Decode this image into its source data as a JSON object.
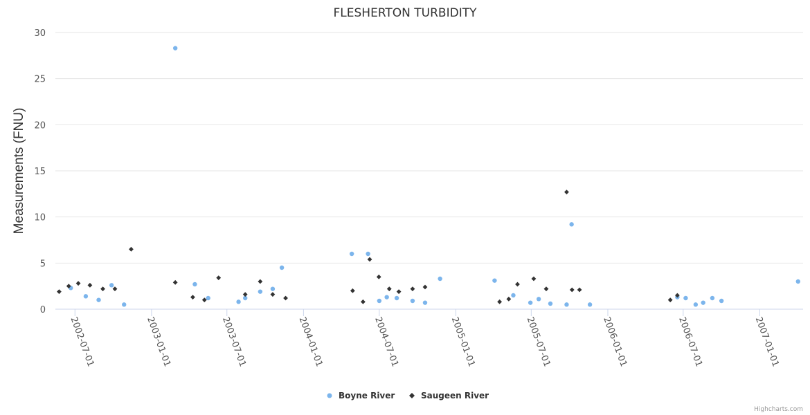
{
  "chart_data": {
    "type": "scatter",
    "title": "FLESHERTON TURBIDITY",
    "xlabel": "",
    "ylabel": "Measurements (FNU)",
    "xlim": [
      "2002-05-15",
      "2007-04-15"
    ],
    "ylim": [
      0,
      30
    ],
    "yticks": [
      0,
      5,
      10,
      15,
      20,
      25,
      30
    ],
    "xticks": [
      "2002-07-01",
      "2003-01-01",
      "2003-07-01",
      "2004-01-01",
      "2004-07-01",
      "2005-01-01",
      "2005-07-01",
      "2006-01-01",
      "2006-07-01",
      "2007-01-01"
    ],
    "grid": true,
    "legend_position": "bottom-center",
    "series": [
      {
        "name": "Boyne River",
        "marker": "circle",
        "color": "#7cb5ec",
        "points": [
          [
            "2002-06-21",
            2.3
          ],
          [
            "2002-07-27",
            1.4
          ],
          [
            "2002-08-27",
            1.0
          ],
          [
            "2002-09-27",
            2.6
          ],
          [
            "2002-10-27",
            0.5
          ],
          [
            "2003-02-27",
            28.3
          ],
          [
            "2003-04-15",
            2.7
          ],
          [
            "2003-05-17",
            1.2
          ],
          [
            "2003-07-29",
            0.8
          ],
          [
            "2003-08-14",
            1.2
          ],
          [
            "2003-09-19",
            1.9
          ],
          [
            "2003-10-19",
            2.2
          ],
          [
            "2003-11-10",
            4.5
          ],
          [
            "2004-04-26",
            6.0
          ],
          [
            "2004-06-04",
            6.0
          ],
          [
            "2004-07-01",
            0.9
          ],
          [
            "2004-07-19",
            1.3
          ],
          [
            "2004-08-12",
            1.2
          ],
          [
            "2004-09-19",
            0.9
          ],
          [
            "2004-10-19",
            0.7
          ],
          [
            "2004-11-24",
            3.3
          ],
          [
            "2005-04-04",
            3.1
          ],
          [
            "2005-05-19",
            1.5
          ],
          [
            "2005-06-29",
            0.7
          ],
          [
            "2005-07-19",
            1.1
          ],
          [
            "2005-08-16",
            0.6
          ],
          [
            "2005-09-24",
            0.5
          ],
          [
            "2005-10-06",
            9.2
          ],
          [
            "2005-11-19",
            0.5
          ],
          [
            "2006-06-17",
            1.3
          ],
          [
            "2006-07-07",
            1.2
          ],
          [
            "2006-07-31",
            0.5
          ],
          [
            "2006-08-18",
            0.7
          ],
          [
            "2006-09-09",
            1.2
          ],
          [
            "2006-10-01",
            0.9
          ],
          [
            "2007-04-03",
            3.0
          ]
        ]
      },
      {
        "name": "Saugeen River",
        "marker": "diamond",
        "color": "#333333",
        "points": [
          [
            "2002-05-24",
            1.9
          ],
          [
            "2002-06-16",
            2.5
          ],
          [
            "2002-07-09",
            2.8
          ],
          [
            "2002-08-06",
            2.6
          ],
          [
            "2002-09-06",
            2.2
          ],
          [
            "2002-10-05",
            2.2
          ],
          [
            "2002-11-13",
            6.5
          ],
          [
            "2003-02-27",
            2.9
          ],
          [
            "2003-04-10",
            1.3
          ],
          [
            "2003-05-08",
            1.0
          ],
          [
            "2003-06-11",
            3.4
          ],
          [
            "2003-08-14",
            1.6
          ],
          [
            "2003-09-19",
            3.0
          ],
          [
            "2003-10-19",
            1.6
          ],
          [
            "2003-11-19",
            1.2
          ],
          [
            "2004-04-28",
            2.0
          ],
          [
            "2004-05-23",
            0.8
          ],
          [
            "2004-06-08",
            5.4
          ],
          [
            "2004-06-30",
            3.5
          ],
          [
            "2004-07-25",
            2.2
          ],
          [
            "2004-08-17",
            1.9
          ],
          [
            "2004-09-19",
            2.2
          ],
          [
            "2004-10-19",
            2.4
          ],
          [
            "2005-04-16",
            0.8
          ],
          [
            "2005-05-08",
            1.1
          ],
          [
            "2005-05-29",
            2.7
          ],
          [
            "2005-07-07",
            3.3
          ],
          [
            "2005-08-06",
            2.2
          ],
          [
            "2005-09-24",
            12.7
          ],
          [
            "2005-10-07",
            2.1
          ],
          [
            "2005-10-25",
            2.1
          ],
          [
            "2006-05-31",
            1.0
          ],
          [
            "2006-06-17",
            1.5
          ]
        ]
      }
    ]
  },
  "credits": "Highcharts.com"
}
